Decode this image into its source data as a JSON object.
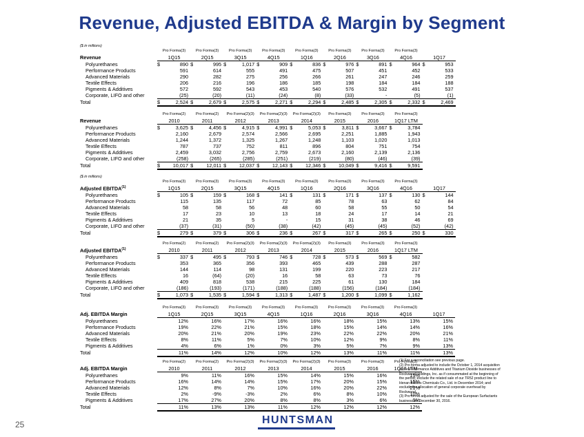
{
  "slide": {
    "title": "Revenue, Adjusted EBITDA & Margin by Segment",
    "page_number": "25",
    "logo_text": "HUNTSMAN"
  },
  "sections": [
    {
      "unit": "($ in millions)",
      "label": "Revenue",
      "label_sup": "",
      "has_dollar": true,
      "pro_forma": [
        "Pro Forma(3)",
        "Pro Forma(3)",
        "Pro Forma(3)",
        "Pro Forma(3)",
        "Pro Forma(3)",
        "Pro Forma(3)",
        "Pro Forma(3)",
        "Pro Forma(3)",
        ""
      ],
      "periods": [
        "1Q15",
        "2Q15",
        "3Q15",
        "4Q15",
        "1Q16",
        "2Q16",
        "3Q16",
        "4Q16",
        "1Q17"
      ],
      "rows": [
        {
          "label": "Polyurethanes",
          "values": [
            "890",
            "995",
            "1,017",
            "909",
            "836",
            "976",
            "891",
            "964",
            "953"
          ]
        },
        {
          "label": "Performance Products",
          "values": [
            "591",
            "614",
            "555",
            "491",
            "475",
            "507",
            "451",
            "452",
            "533"
          ]
        },
        {
          "label": "Advanced Materials",
          "values": [
            "290",
            "282",
            "275",
            "256",
            "266",
            "261",
            "247",
            "246",
            "259"
          ]
        },
        {
          "label": "Textile Effects",
          "values": [
            "206",
            "216",
            "196",
            "186",
            "185",
            "198",
            "184",
            "184",
            "188"
          ]
        },
        {
          "label": "Pigments & Additives",
          "values": [
            "572",
            "592",
            "543",
            "453",
            "540",
            "576",
            "532",
            "491",
            "537"
          ]
        },
        {
          "label": "Corporate, LIFO and other",
          "values": [
            "(25)",
            "(20)",
            "(11)",
            "(24)",
            "(8)",
            "(33)",
            "-",
            "(5)",
            "(1)"
          ]
        }
      ],
      "total": {
        "label": "Total",
        "values": [
          "2,524",
          "2,679",
          "2,575",
          "2,271",
          "2,294",
          "2,485",
          "2,305",
          "2,332",
          "2,469"
        ]
      }
    },
    {
      "unit": "",
      "label": "Revenue",
      "label_sup": "",
      "has_dollar": true,
      "pro_forma": [
        "Pro Forma(2)",
        "Pro Forma(2)",
        "Pro Forma(2)(3)",
        "Pro Forma(2)(3)",
        "Pro Forma(2)(3)",
        "Pro Forma(3)",
        "Pro Forma(3)",
        "Pro Forma(3)"
      ],
      "periods": [
        "2010",
        "2011",
        "2012",
        "2013",
        "2014",
        "2015",
        "2016",
        "1Q17 LTM"
      ],
      "rows": [
        {
          "label": "Polyurethanes",
          "values": [
            "3,625",
            "4,456",
            "4,915",
            "4,991",
            "5,053",
            "3,811",
            "3,667",
            "3,784"
          ]
        },
        {
          "label": "Performance Products",
          "values": [
            "2,160",
            "2,679",
            "2,574",
            "2,566",
            "2,695",
            "2,251",
            "1,885",
            "1,943"
          ]
        },
        {
          "label": "Advanced Materials",
          "values": [
            "1,244",
            "1,372",
            "1,325",
            "1,267",
            "1,248",
            "1,103",
            "1,020",
            "1,013"
          ]
        },
        {
          "label": "Textile Effects",
          "values": [
            "787",
            "737",
            "752",
            "811",
            "896",
            "804",
            "751",
            "754"
          ]
        },
        {
          "label": "Pigments & Additives",
          "values": [
            "2,459",
            "3,032",
            "2,756",
            "2,759",
            "2,673",
            "2,160",
            "2,139",
            "2,136"
          ]
        },
        {
          "label": "Corporate, LIFO and other",
          "values": [
            "(258)",
            "(265)",
            "(285)",
            "(251)",
            "(219)",
            "(80)",
            "(46)",
            "(39)"
          ]
        }
      ],
      "total": {
        "label": "Total",
        "values": [
          "10,017",
          "12,011",
          "12,037",
          "12,143",
          "12,346",
          "10,049",
          "9,416",
          "9,591"
        ]
      }
    },
    {
      "unit": "($ in millions)",
      "label": "Adjusted EBITDA",
      "label_sup": "(1)",
      "has_dollar": true,
      "pro_forma": [
        "Pro Forma(3)",
        "Pro Forma(3)",
        "Pro Forma(3)",
        "Pro Forma(3)",
        "Pro Forma(3)",
        "Pro Forma(3)",
        "Pro Forma(3)",
        "Pro Forma(3)",
        ""
      ],
      "periods": [
        "1Q15",
        "2Q15",
        "3Q15",
        "4Q15",
        "1Q16",
        "2Q16",
        "3Q16",
        "4Q16",
        "1Q17"
      ],
      "rows": [
        {
          "label": "Polyurethanes",
          "values": [
            "105",
            "159",
            "168",
            "141",
            "131",
            "171",
            "137",
            "130",
            "144"
          ]
        },
        {
          "label": "Performance Products",
          "values": [
            "115",
            "135",
            "117",
            "72",
            "85",
            "78",
            "63",
            "62",
            "84"
          ]
        },
        {
          "label": "Advanced Materials",
          "values": [
            "58",
            "58",
            "56",
            "48",
            "60",
            "58",
            "55",
            "50",
            "54"
          ]
        },
        {
          "label": "Textile Effects",
          "values": [
            "17",
            "23",
            "10",
            "13",
            "18",
            "24",
            "17",
            "14",
            "21"
          ]
        },
        {
          "label": "Pigments & Additives",
          "values": [
            "21",
            "35",
            "5",
            "-",
            "15",
            "31",
            "38",
            "46",
            "69"
          ]
        },
        {
          "label": "Corporate, LIFO and other",
          "values": [
            "(37)",
            "(31)",
            "(50)",
            "(38)",
            "(42)",
            "(45)",
            "(45)",
            "(52)",
            "(42)"
          ]
        }
      ],
      "total": {
        "label": "Total",
        "values": [
          "279",
          "379",
          "306",
          "236",
          "267",
          "317",
          "265",
          "250",
          "330"
        ]
      }
    },
    {
      "unit": "",
      "label": "Adjusted EBITDA",
      "label_sup": "(1)",
      "has_dollar": true,
      "pro_forma": [
        "Pro Forma(2)",
        "Pro Forma(2)",
        "Pro Forma(2)(3)",
        "Pro Forma(2)(3)",
        "Pro Forma(2)(3)",
        "Pro Forma(3)",
        "Pro Forma(3)",
        "Pro Forma(3)"
      ],
      "periods": [
        "2010",
        "2011",
        "2012",
        "2013",
        "2014",
        "2015",
        "2016",
        "1Q17 LTM"
      ],
      "rows": [
        {
          "label": "Polyurethanes",
          "values": [
            "337",
            "495",
            "793",
            "746",
            "728",
            "573",
            "569",
            "582"
          ]
        },
        {
          "label": "Performance Products",
          "values": [
            "353",
            "365",
            "356",
            "393",
            "465",
            "439",
            "288",
            "287"
          ]
        },
        {
          "label": "Advanced Materials",
          "values": [
            "144",
            "114",
            "98",
            "131",
            "199",
            "220",
            "223",
            "217"
          ]
        },
        {
          "label": "Textile Effects",
          "values": [
            "16",
            "(64)",
            "(20)",
            "16",
            "58",
            "63",
            "73",
            "76"
          ]
        },
        {
          "label": "Pigments & Additives",
          "values": [
            "409",
            "818",
            "538",
            "215",
            "225",
            "61",
            "130",
            "184"
          ]
        },
        {
          "label": "Corporate, LIFO and other",
          "values": [
            "(186)",
            "(193)",
            "(171)",
            "(188)",
            "(188)",
            "(156)",
            "(184)",
            "(184)"
          ]
        }
      ],
      "total": {
        "label": "Total",
        "values": [
          "1,073",
          "1,535",
          "1,594",
          "1,313",
          "1,487",
          "1,200",
          "1,099",
          "1,162"
        ]
      }
    },
    {
      "unit": "",
      "label": "Adj. EBITDA Margin",
      "label_sup": "",
      "has_dollar": false,
      "pro_forma": [
        "Pro Forma(3)",
        "Pro Forma(3)",
        "Pro Forma(3)",
        "Pro Forma(3)",
        "Pro Forma(3)",
        "Pro Forma(3)",
        "Pro Forma(3)",
        "Pro Forma(3)",
        ""
      ],
      "periods": [
        "1Q15",
        "2Q15",
        "3Q15",
        "4Q15",
        "1Q16",
        "2Q16",
        "3Q16",
        "4Q16",
        "1Q17"
      ],
      "rows": [
        {
          "label": "Polyurethanes",
          "values": [
            "12%",
            "16%",
            "17%",
            "16%",
            "16%",
            "18%",
            "15%",
            "13%",
            "15%"
          ]
        },
        {
          "label": "Performance Products",
          "values": [
            "19%",
            "22%",
            "21%",
            "15%",
            "18%",
            "15%",
            "14%",
            "14%",
            "16%"
          ]
        },
        {
          "label": "Advanced Materials",
          "values": [
            "20%",
            "21%",
            "20%",
            "19%",
            "23%",
            "22%",
            "22%",
            "20%",
            "21%"
          ]
        },
        {
          "label": "Textile Effects",
          "values": [
            "8%",
            "11%",
            "5%",
            "7%",
            "10%",
            "12%",
            "9%",
            "8%",
            "11%"
          ]
        },
        {
          "label": "Pigments & Additives",
          "values": [
            "4%",
            "6%",
            "1%",
            "0%",
            "3%",
            "5%",
            "7%",
            "9%",
            "13%"
          ]
        }
      ],
      "total": {
        "label": "Total",
        "values": [
          "11%",
          "14%",
          "12%",
          "10%",
          "12%",
          "13%",
          "11%",
          "11%",
          "13%"
        ]
      }
    },
    {
      "unit": "",
      "label": "Adj. EBITDA Margin",
      "label_sup": "",
      "has_dollar": false,
      "pro_forma": [
        "Pro Forma(2)",
        "Pro Forma(2)",
        "Pro Forma(2)(3)",
        "Pro Forma(2)(3)",
        "Pro Forma(2)(3)",
        "Pro Forma(3)",
        "Pro Forma(3)",
        "Pro Forma(3)"
      ],
      "periods": [
        "2010",
        "2011",
        "2012",
        "2013",
        "2014",
        "2015",
        "2016",
        "1Q17 LTM"
      ],
      "rows": [
        {
          "label": "Polyurethanes",
          "values": [
            "9%",
            "11%",
            "16%",
            "15%",
            "14%",
            "15%",
            "16%",
            "15%"
          ]
        },
        {
          "label": "Performance Products",
          "values": [
            "16%",
            "14%",
            "14%",
            "15%",
            "17%",
            "20%",
            "15%",
            "15%"
          ]
        },
        {
          "label": "Advanced Materials",
          "values": [
            "12%",
            "8%",
            "7%",
            "10%",
            "16%",
            "20%",
            "22%",
            "21%"
          ]
        },
        {
          "label": "Textile Effects",
          "values": [
            "2%",
            "-9%",
            "-3%",
            "2%",
            "6%",
            "8%",
            "10%",
            "10%"
          ]
        },
        {
          "label": "Pigments & Additives",
          "values": [
            "17%",
            "27%",
            "20%",
            "8%",
            "8%",
            "3%",
            "6%",
            "9%"
          ]
        }
      ],
      "total": {
        "label": "Total",
        "values": [
          "11%",
          "13%",
          "13%",
          "11%",
          "12%",
          "12%",
          "12%",
          "12%"
        ]
      }
    }
  ],
  "footnotes": [
    "(1) For a reconciliation see previous page.",
    "(2) Pro forma adjusted to include the October 1, 2014 acquisition of the Performance Additives and Titanium Dioxide businesses of Rockwood Holdings, Inc. as if consummated at the beginning of the period; exclude the related sale of our TR52 product line to Henan Billions Chemicals Co., Ltd. in December 2014; and exclude the allocation of general corporate overhead by Rockwood.",
    "(3) Pro forma adjusted for the sale of the European Surfactants business on December 30, 2016."
  ]
}
